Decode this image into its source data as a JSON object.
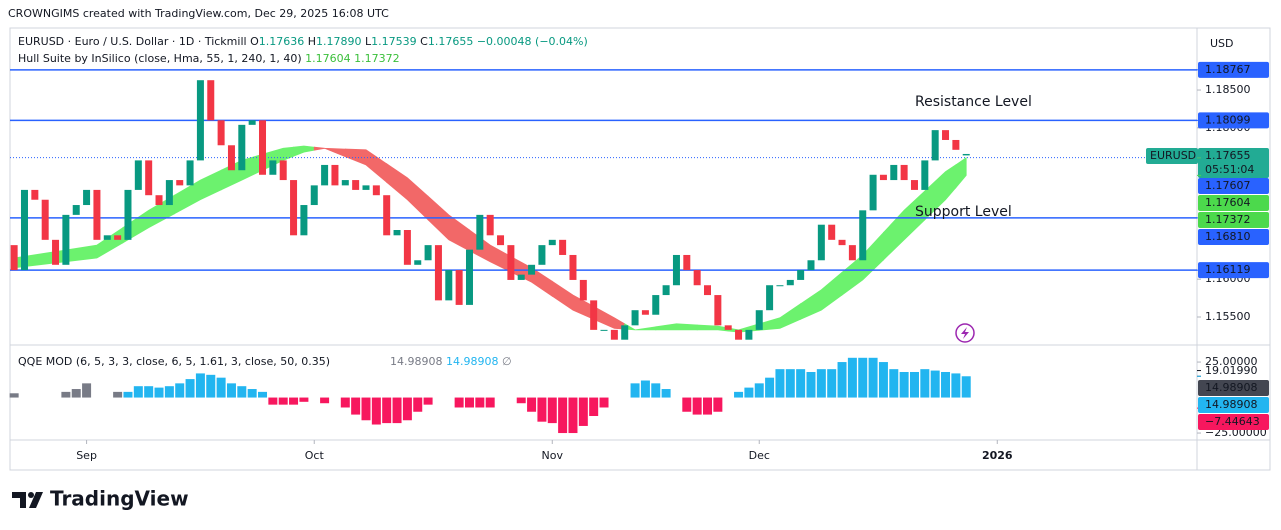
{
  "credit": "CROWNGIMS created with TradingView.com, Dec 29, 2025 16:08 UTC",
  "brand": "TradingView",
  "chart_data": {
    "type": "candlestick",
    "legend": {
      "symbol": "EURUSD · Euro / U.S. Dollar · 1D · Tickmill",
      "keys": [
        "O",
        "H",
        "L",
        "C"
      ],
      "high": "1.17890",
      "low": "1.17539",
      "change": "−0.00048 (−0.04%)"
    },
    "currency": "USD",
    "open": [
      1.1645,
      1.1612,
      1.1718,
      1.1705,
      1.1652,
      1.1619,
      1.1685,
      1.1698,
      1.1718,
      1.1652,
      1.1658,
      1.1652,
      1.1718,
      1.1757,
      1.1711,
      1.1698,
      1.1731,
      1.1724,
      1.1757,
      1.1863,
      1.181,
      1.1777,
      1.1744,
      1.1804,
      1.181,
      1.1738,
      1.1757,
      1.1731,
      1.1658,
      1.1698,
      1.1724,
      1.1751,
      1.1724,
      1.1731,
      1.1718,
      1.1724,
      1.1711,
      1.1658,
      1.1665,
      1.1619,
      1.1625,
      1.1645,
      1.1572,
      1.1612,
      1.1566,
      1.1639,
      1.1685,
      1.1658,
      1.1645,
      1.1599,
      1.1606,
      1.1619,
      1.1645,
      1.1652,
      1.1632,
      1.1599,
      1.1572,
      1.1533,
      1.1533,
      1.152,
      1.1539,
      1.1559,
      1.1553,
      1.1579,
      1.1592,
      1.1632,
      1.1612,
      1.1592,
      1.1579,
      1.1539,
      1.1533,
      1.152,
      1.1533,
      1.1559,
      1.1592,
      1.1592,
      1.1599,
      1.1612,
      1.1625,
      1.1672,
      1.1652,
      1.1645,
      1.1625,
      1.1691,
      1.1738,
      1.1731,
      1.1751,
      1.1731,
      1.1718,
      1.1757,
      1.1797,
      1.1784,
      1.17636
    ],
    "close": [
      1.1612,
      1.1718,
      1.1705,
      1.1652,
      1.1619,
      1.1685,
      1.1698,
      1.1718,
      1.1652,
      1.1658,
      1.1652,
      1.1718,
      1.1757,
      1.1711,
      1.1698,
      1.1731,
      1.1724,
      1.1757,
      1.1863,
      1.181,
      1.1777,
      1.1744,
      1.1804,
      1.181,
      1.1738,
      1.1757,
      1.1731,
      1.1658,
      1.1698,
      1.1724,
      1.1751,
      1.1724,
      1.1731,
      1.1718,
      1.1724,
      1.1711,
      1.1658,
      1.1665,
      1.1619,
      1.1625,
      1.1645,
      1.1572,
      1.1612,
      1.1566,
      1.1639,
      1.1685,
      1.1658,
      1.1645,
      1.1599,
      1.1606,
      1.1619,
      1.1645,
      1.1652,
      1.1632,
      1.1599,
      1.1572,
      1.1533,
      1.1533,
      1.152,
      1.1539,
      1.1559,
      1.1553,
      1.1579,
      1.1592,
      1.1632,
      1.1612,
      1.1592,
      1.1579,
      1.1539,
      1.1533,
      1.152,
      1.1533,
      1.1559,
      1.1592,
      1.1592,
      1.1599,
      1.1612,
      1.1625,
      1.1672,
      1.1652,
      1.1645,
      1.1625,
      1.1691,
      1.1738,
      1.1731,
      1.1751,
      1.1731,
      1.1718,
      1.1757,
      1.1797,
      1.1784,
      1.1771,
      1.17655
    ],
    "up_color": "#089981",
    "down_color": "#f23645",
    "xlim": [
      -0.4,
      114.3
    ],
    "xticks": [
      {
        "value": 7,
        "label": "Sep"
      },
      {
        "value": 29,
        "label": "Oct"
      },
      {
        "value": 52,
        "label": "Nov"
      },
      {
        "value": 72,
        "label": "Dec"
      },
      {
        "value": 95,
        "label": "2026"
      }
    ],
    "ylim": [
      1.1513,
      1.1932
    ],
    "yticks": [
      {
        "value": 1.185,
        "label": "1.18500"
      },
      {
        "value": 1.18,
        "label": "1.18000"
      },
      {
        "value": 1.16,
        "label": "1.16000"
      },
      {
        "value": 1.155,
        "label": "1.15500"
      }
    ],
    "levels": [
      1.18767,
      1.18099,
      {
        "value": 1.1681,
        "label": "1.16810"
      },
      1.16119
    ],
    "level_color": "#2962ff",
    "last_price": {
      "name": "EURUSD",
      "countdown": "05:51:04",
      "color": "#22ab94"
    },
    "marker_price": 1.17607,
    "annotations": [
      {
        "text": "Resistance Level",
        "color": "#f23645"
      },
      {
        "text": "Support Level",
        "color": "#f23645"
      }
    ],
    "hull": {
      "title": "Hull Suite by InSilico (close, Hma, 55, 1, 240, 1, 40)",
      "x": [
        0,
        8,
        13,
        18,
        22,
        26,
        28,
        30,
        34,
        38,
        42,
        46,
        50,
        54,
        58,
        60,
        64,
        68,
        70,
        74,
        78,
        82,
        86,
        90,
        92
      ],
      "fast": [
        1.1628,
        1.1645,
        1.1691,
        1.1731,
        1.1757,
        1.1773,
        1.1776,
        1.1773,
        1.1751,
        1.1705,
        1.1652,
        1.1623,
        1.1596,
        1.1559,
        1.1535,
        1.1533,
        1.1541,
        1.1538,
        1.1533,
        1.1549,
        1.1586,
        1.1632,
        1.1691,
        1.1742,
        1.17604
      ],
      "slow": [
        1.1615,
        1.1628,
        1.1668,
        1.1705,
        1.1731,
        1.1757,
        1.1768,
        1.1773,
        1.1771,
        1.1734,
        1.1685,
        1.1645,
        1.1615,
        1.1579,
        1.1549,
        1.1533,
        1.1533,
        1.1533,
        1.153,
        1.1535,
        1.1559,
        1.1599,
        1.1652,
        1.1705,
        1.17372
      ],
      "colors": [
        "#6cf26e",
        "#6cf26e",
        "#6cf26e",
        "#6cf26e",
        "#6cf26e",
        "#6cf26e",
        "#6cf26e",
        "#f26868",
        "#f26868",
        "#f26868",
        "#f26868",
        "#f26868",
        "#f26868",
        "#f26868",
        "#f26868",
        "#6cf26e",
        "#6cf26e",
        "#6cf26e",
        "#6cf26e",
        "#6cf26e",
        "#6cf26e",
        "#6cf26e",
        "#6cf26e",
        "#6cf26e",
        "#6cf26e"
      ],
      "label_color": "#4cd94c"
    },
    "qqe": {
      "title": "QQE MOD (6, 5, 3, 3, close, 6, 5, 1.61, 3, close, 50, 0.35)",
      "na_symbol": "∅",
      "ylim": [
        -29.9,
        34.9
      ],
      "yticks": [
        {
          "value": 25,
          "label": "25.00000"
        },
        {
          "value": -25,
          "label": "−25.00000"
        }
      ],
      "values": [
        3,
        null,
        null,
        null,
        null,
        4,
        6,
        10,
        null,
        null,
        4,
        4,
        8,
        8,
        7,
        8,
        10,
        13,
        17,
        16,
        14,
        10,
        8,
        6,
        4,
        -5,
        -5,
        -5,
        -3,
        null,
        -4,
        null,
        -7,
        -12,
        -16,
        -19,
        -18,
        -18,
        -16,
        -10,
        -5,
        null,
        null,
        -7,
        -7,
        -7,
        -7,
        null,
        null,
        -4,
        -10,
        -17,
        -18,
        -25,
        -25,
        -20,
        -13,
        -7,
        null,
        null,
        10,
        12,
        10,
        6,
        null,
        -10,
        -12,
        -12,
        -10,
        null,
        4,
        7,
        10,
        14,
        20,
        20,
        20,
        18,
        20,
        20,
        25,
        28,
        28,
        28,
        25,
        20,
        18,
        18,
        20,
        19,
        18,
        17,
        14.98908
      ],
      "colors": [
        "#787b86",
        null,
        null,
        null,
        null,
        "#787b86",
        "#787b86",
        "#787b86",
        null,
        null,
        "#787b86",
        "#22b5f0",
        "#22b5f0",
        "#22b5f0",
        "#22b5f0",
        "#22b5f0",
        "#22b5f0",
        "#22b5f0",
        "#22b5f0",
        "#22b5f0",
        "#22b5f0",
        "#22b5f0",
        "#22b5f0",
        "#22b5f0",
        "#22b5f0",
        "#f7175e",
        "#f7175e",
        "#f7175e",
        "#f7175e",
        null,
        "#f7175e",
        null,
        "#f7175e",
        "#f7175e",
        "#f7175e",
        "#f7175e",
        "#f7175e",
        "#f7175e",
        "#f7175e",
        "#f7175e",
        "#f7175e",
        null,
        null,
        "#f7175e",
        "#f7175e",
        "#f7175e",
        "#f7175e",
        null,
        null,
        "#f7175e",
        "#f7175e",
        "#f7175e",
        "#f7175e",
        "#f7175e",
        "#f7175e",
        "#f7175e",
        "#f7175e",
        "#f7175e",
        null,
        null,
        "#22b5f0",
        "#22b5f0",
        "#22b5f0",
        "#22b5f0",
        null,
        "#f7175e",
        "#f7175e",
        "#f7175e",
        "#f7175e",
        null,
        "#22b5f0",
        "#22b5f0",
        "#22b5f0",
        "#22b5f0",
        "#22b5f0",
        "#22b5f0",
        "#22b5f0",
        "#22b5f0",
        "#22b5f0",
        "#22b5f0",
        "#22b5f0",
        "#22b5f0",
        "#22b5f0",
        "#22b5f0",
        "#22b5f0",
        "#22b5f0",
        "#22b5f0",
        "#22b5f0",
        "#22b5f0",
        "#22b5f0",
        "#22b5f0",
        "#22b5f0",
        "#22b5f0"
      ],
      "markers": [
        {
          "value": 19.0199,
          "label": "19.01990"
        },
        {
          "value": 14.98908,
          "label": "14.98908",
          "color": "#434651"
        },
        {
          "value": -7.44643,
          "label": "−7.44643",
          "color": "#f7175e"
        }
      ]
    }
  }
}
